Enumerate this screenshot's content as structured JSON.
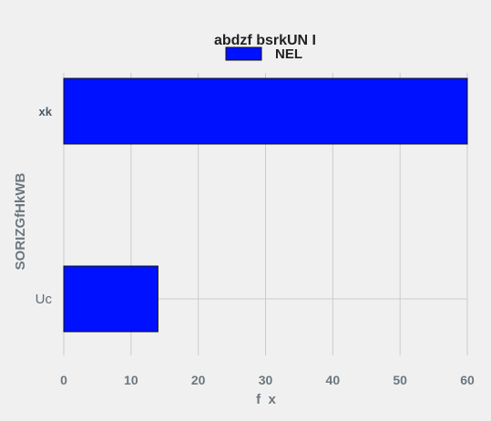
{
  "chart_data": {
    "type": "bar",
    "orientation": "horizontal",
    "title": "abdzf bsrkUN I",
    "xlabel": "f  x",
    "ylabel": "SORIZGfHkWB",
    "categories": [
      "xk",
      "Uc"
    ],
    "series": [
      {
        "name": "NEL",
        "values": [
          60,
          14
        ],
        "color": "#0011ff"
      }
    ],
    "xlim": [
      0,
      60
    ],
    "xticks": [
      0,
      10,
      20,
      30,
      40,
      50,
      60
    ],
    "grid": true,
    "legend": "top-center"
  }
}
